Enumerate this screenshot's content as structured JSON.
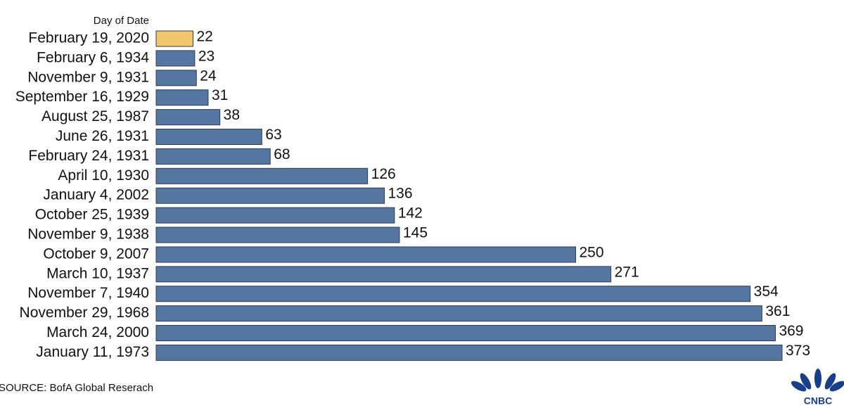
{
  "chart_data": {
    "type": "bar",
    "orientation": "horizontal",
    "category_header": "Day of Date",
    "categories": [
      "February 19, 2020",
      "February 6, 1934",
      "November 9, 1931",
      "September 16, 1929",
      "August 25, 1987",
      "June 26, 1931",
      "February 24, 1931",
      "April 10, 1930",
      "January 4, 2002",
      "October 25, 1939",
      "November 9, 1938",
      "October 9, 2007",
      "March 10, 1937",
      "November 7, 1940",
      "November 29, 1968",
      "March 24, 2000",
      "January 11, 1973"
    ],
    "values": [
      22,
      23,
      24,
      31,
      38,
      63,
      68,
      126,
      136,
      142,
      145,
      250,
      271,
      354,
      361,
      369,
      373
    ],
    "colors": [
      "#f2c66d",
      "#5676a2",
      "#5676a2",
      "#5676a2",
      "#5676a2",
      "#5676a2",
      "#5676a2",
      "#5676a2",
      "#5676a2",
      "#5676a2",
      "#5676a2",
      "#5676a2",
      "#5676a2",
      "#5676a2",
      "#5676a2",
      "#5676a2",
      "#5676a2"
    ],
    "source": "SOURCE: BofA Global Reserach",
    "logo": "CNBC"
  }
}
